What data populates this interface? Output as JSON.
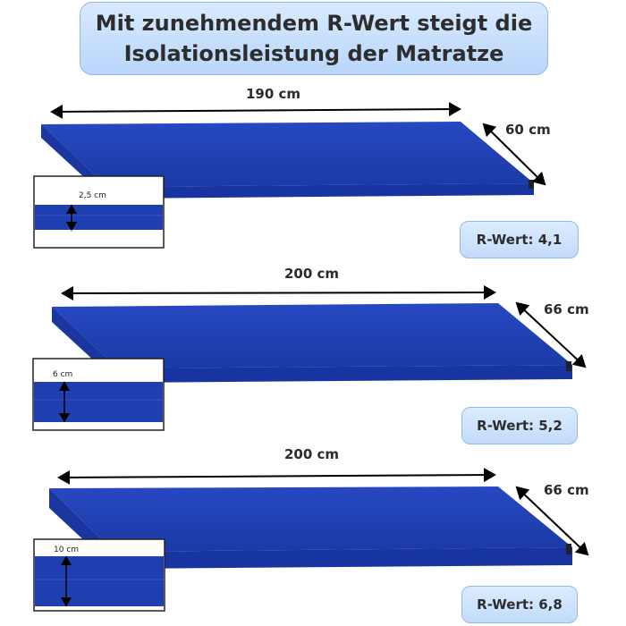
{
  "title": {
    "line1": "Mit zunehmendem R-Wert steigt die",
    "line2": "Isolationsleistung der Matratze"
  },
  "mattresses": [
    {
      "length": "190 cm",
      "width": "60 cm",
      "thickness": "2,5 cm",
      "r_value": "R-Wert: 4,1"
    },
    {
      "length": "200 cm",
      "width": "66 cm",
      "thickness": "6 cm",
      "r_value": "R-Wert: 5,2"
    },
    {
      "length": "200 cm",
      "width": "66 cm",
      "thickness": "10 cm",
      "r_value": "R-Wert: 6,8"
    }
  ],
  "colors": {
    "mattress_top": "#1f3fb0",
    "mattress_side": "#1a37a0",
    "badge_bg": "#c6dcf8",
    "title_bg": "#c6dcf8"
  }
}
